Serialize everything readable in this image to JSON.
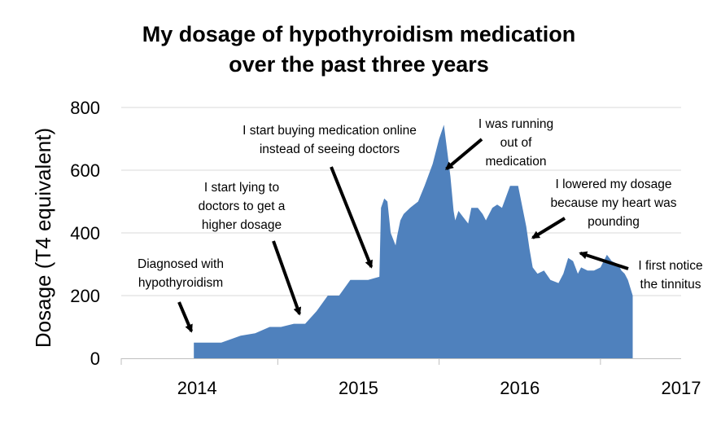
{
  "chart_data": {
    "type": "area",
    "title": [
      "My dosage of hypothyroidism medication",
      "over the past three years"
    ],
    "ylabel": "Dosage (T4 equivalent)",
    "xlabel": "",
    "ylim": [
      0,
      800
    ],
    "yticks": [
      0,
      200,
      400,
      600,
      800
    ],
    "xlim": [
      2013.53,
      2017.0
    ],
    "xticks": [
      {
        "label": "2014",
        "value": 2014
      },
      {
        "label": "2015",
        "value": 2015
      },
      {
        "label": "2016",
        "value": 2016
      },
      {
        "label": "2017",
        "value": 2017
      }
    ],
    "grid": true,
    "color": "#4f81bd",
    "series": [
      {
        "x": [
          2013.98,
          2013.98,
          2014.1,
          2014.15,
          2014.27,
          2014.36,
          2014.45,
          2014.52,
          2014.6,
          2014.63,
          2014.67,
          2014.74,
          2014.81,
          2014.88,
          2014.95,
          2015.03,
          2015.06,
          2015.13,
          2015.14,
          2015.16,
          2015.18,
          2015.2,
          2015.23,
          2015.24,
          2015.26,
          2015.28,
          2015.32,
          2015.37,
          2015.41,
          2015.46,
          2015.5,
          2015.53,
          2015.57,
          2015.59,
          2015.6,
          2015.62,
          2015.65,
          2015.68,
          2015.7,
          2015.74,
          2015.77,
          2015.79,
          2015.83,
          2015.86,
          2015.89,
          2015.94,
          2015.99,
          2016.04,
          2016.06,
          2016.08,
          2016.11,
          2016.15,
          2016.19,
          2016.24,
          2016.27,
          2016.3,
          2016.33,
          2016.36,
          2016.38,
          2016.42,
          2016.46,
          2016.5,
          2016.54,
          2016.57,
          2016.61,
          2016.63,
          2016.65,
          2016.67,
          2016.7
        ],
        "y": [
          0,
          50,
          50,
          50,
          72,
          80,
          100,
          100,
          110,
          110,
          110,
          150,
          200,
          200,
          250,
          250,
          250,
          260,
          480,
          510,
          500,
          400,
          360,
          390,
          440,
          460,
          480,
          500,
          550,
          620,
          700,
          745,
          580,
          470,
          440,
          470,
          450,
          430,
          480,
          480,
          460,
          440,
          480,
          490,
          480,
          550,
          550,
          420,
          350,
          290,
          270,
          280,
          250,
          240,
          270,
          320,
          310,
          270,
          290,
          280,
          280,
          290,
          330,
          310,
          300,
          280,
          270,
          250,
          200
        ]
      }
    ],
    "annotations": [
      {
        "lines": [
          "Diagnosed with",
          "hypothyroidism"
        ],
        "x": 2013.98,
        "y": 55
      },
      {
        "lines": [
          "I start lying to",
          "doctors to get a",
          "higher dosage"
        ],
        "x": 2014.65,
        "y": 110
      },
      {
        "lines": [
          "I start buying medication online",
          "instead of seeing doctors"
        ],
        "x": 2015.1,
        "y": 260
      },
      {
        "lines": [
          "I was running",
          "out of",
          "medication"
        ],
        "x": 2015.53,
        "y": 630
      },
      {
        "lines": [
          "I lowered my dosage",
          "because my heart was",
          "pounding"
        ],
        "x": 2016.06,
        "y": 400
      },
      {
        "lines": [
          "I first notice",
          "the tinnitus"
        ],
        "x": 2016.33,
        "y": 325
      }
    ]
  }
}
